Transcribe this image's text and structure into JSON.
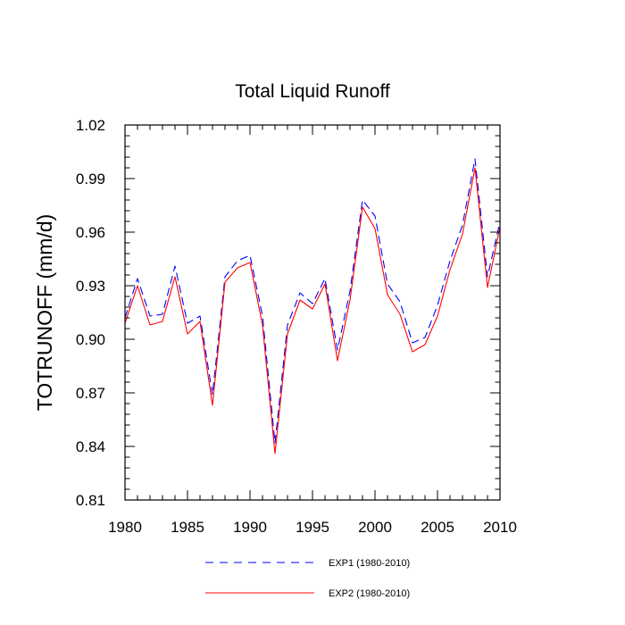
{
  "chart_data": {
    "type": "line",
    "title": "Total Liquid Runoff",
    "xlabel": "",
    "ylabel": "TOTRUNOFF  (mm/d)",
    "xlim": [
      1980,
      2010
    ],
    "ylim": [
      0.81,
      1.02
    ],
    "x_ticks": [
      1980,
      1985,
      1990,
      1995,
      2000,
      2005,
      2010
    ],
    "x_tick_labels": [
      "1980",
      "1985",
      "1990",
      "1995",
      "2000",
      "2005",
      "2010"
    ],
    "y_ticks": [
      0.81,
      0.84,
      0.87,
      0.9,
      0.93,
      0.96,
      0.99,
      1.02
    ],
    "y_tick_labels": [
      "0.81",
      "0.84",
      "0.87",
      "0.90",
      "0.93",
      "0.96",
      "0.99",
      "1.02"
    ],
    "grid": false,
    "legend_position": "bottom",
    "x": [
      1980,
      1981,
      1982,
      1983,
      1984,
      1985,
      1986,
      1987,
      1988,
      1989,
      1990,
      1991,
      1992,
      1993,
      1994,
      1995,
      1996,
      1997,
      1998,
      1999,
      2000,
      2001,
      2002,
      2003,
      2004,
      2005,
      2006,
      2007,
      2008,
      2009,
      2010
    ],
    "series": [
      {
        "name": "EXP1 (1980-2010)",
        "color": "#0000ff",
        "line_style": "dashed",
        "values": [
          0.912,
          0.934,
          0.913,
          0.914,
          0.941,
          0.909,
          0.913,
          0.869,
          0.935,
          0.944,
          0.947,
          0.913,
          0.842,
          0.908,
          0.926,
          0.92,
          0.934,
          0.894,
          0.927,
          0.978,
          0.969,
          0.931,
          0.921,
          0.898,
          0.901,
          0.919,
          0.944,
          0.964,
          1.001,
          0.935,
          0.966
        ]
      },
      {
        "name": "EXP2 (1980-2010)",
        "color": "#ff0000",
        "line_style": "solid",
        "values": [
          0.909,
          0.93,
          0.908,
          0.91,
          0.935,
          0.903,
          0.91,
          0.863,
          0.932,
          0.94,
          0.943,
          0.908,
          0.836,
          0.903,
          0.922,
          0.917,
          0.931,
          0.888,
          0.922,
          0.974,
          0.962,
          0.925,
          0.914,
          0.893,
          0.897,
          0.913,
          0.939,
          0.959,
          0.996,
          0.929,
          0.963
        ]
      }
    ]
  }
}
